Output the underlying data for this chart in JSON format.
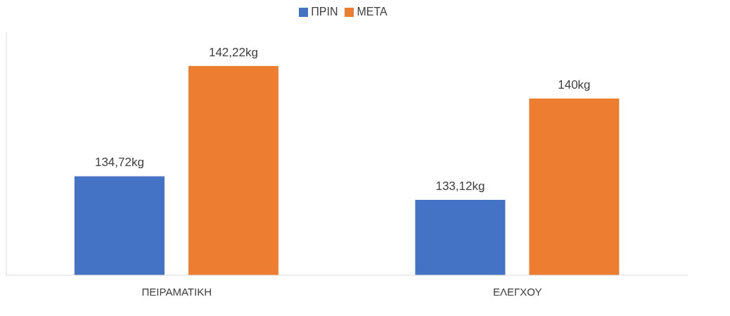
{
  "chart_data": {
    "type": "bar",
    "categories": [
      "ΠΕΙΡΑΜΑΤΙΚΗ",
      "ΕΛΕΓΧΟΥ"
    ],
    "series": [
      {
        "name": "ΠΡΙΝ",
        "color": "#4472c4",
        "values": [
          134.72,
          133.12
        ],
        "value_labels": [
          "134,72kg",
          "133,12kg"
        ]
      },
      {
        "name": "ΜΕΤΑ",
        "color": "#ed7d31",
        "values": [
          142.22,
          140
        ],
        "value_labels": [
          "142,22kg",
          "140kg"
        ]
      }
    ],
    "ylim": [
      128,
      144.5
    ],
    "tick_labels": "x",
    "legend": "top",
    "grid": false
  }
}
